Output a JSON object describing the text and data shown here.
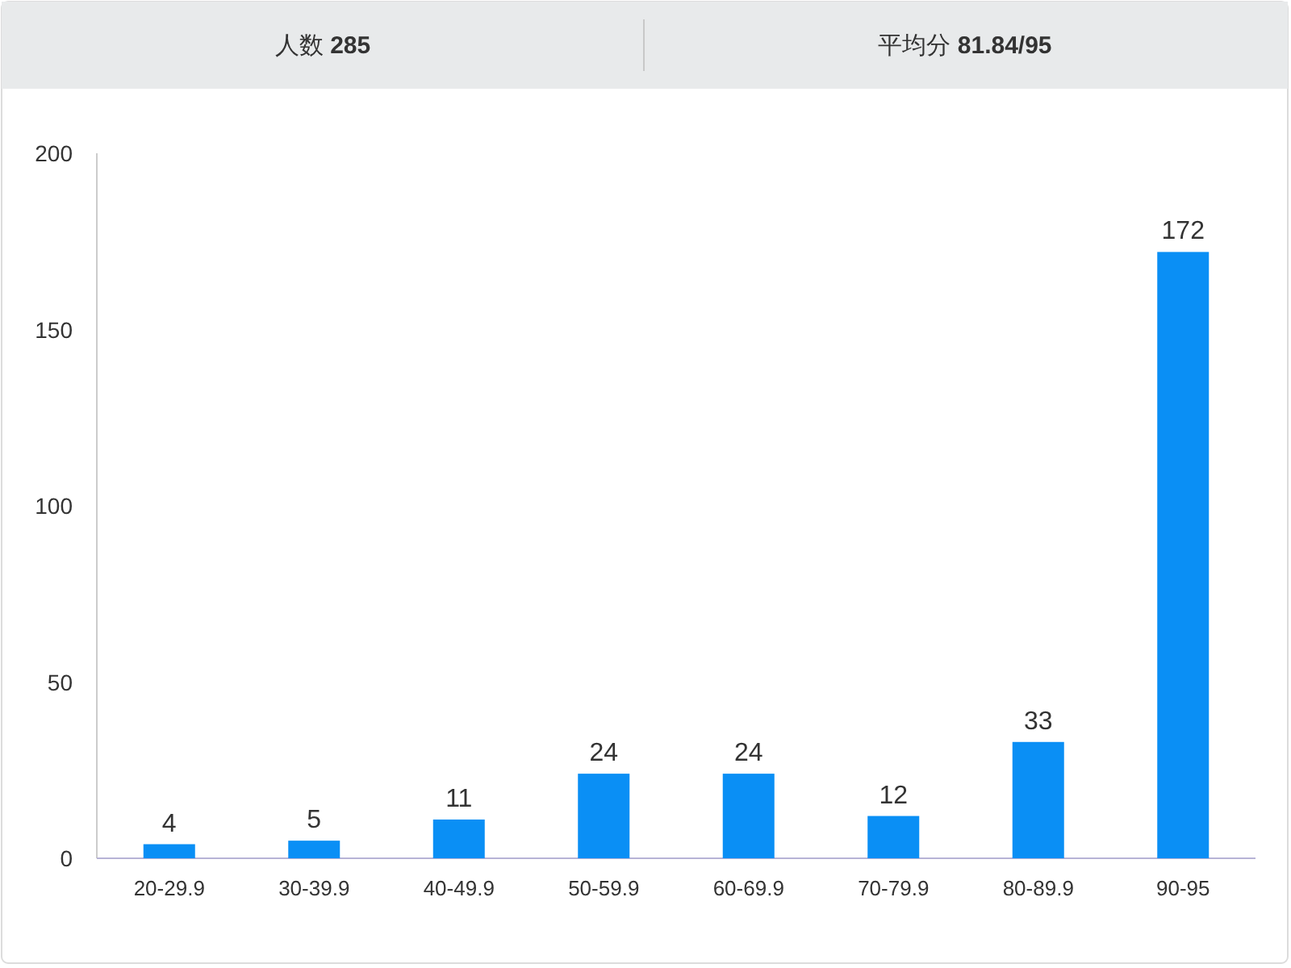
{
  "chart_data": {
    "type": "bar",
    "title": "人数 285",
    "subtitle": "平均分 81.84/95",
    "categories": [
      "20-29.9",
      "30-39.9",
      "40-49.9",
      "50-59.9",
      "60-69.9",
      "70-79.9",
      "80-89.9",
      "90-95"
    ],
    "values": [
      4,
      5,
      11,
      24,
      24,
      12,
      33,
      172
    ],
    "color": "#0a8ff5",
    "ylim": [
      0,
      200
    ],
    "yticks": [
      0,
      50,
      100,
      150,
      200
    ],
    "grid": false,
    "data_labels": true
  }
}
